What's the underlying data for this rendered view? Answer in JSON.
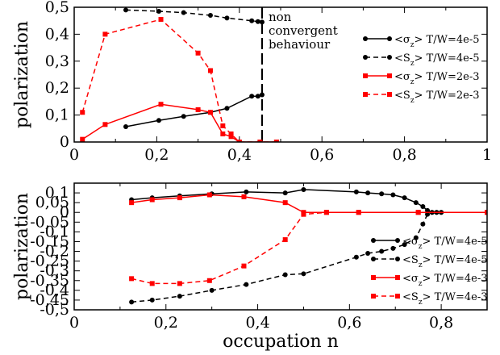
{
  "chart_data": [
    {
      "type": "line",
      "ylabel": "polarization",
      "xlabel": "",
      "xlim": [
        0,
        1
      ],
      "ylim": [
        0,
        0.5
      ],
      "xticks": [
        0,
        0.2,
        0.4,
        0.6,
        0.8,
        1
      ],
      "xtick_labels": [
        "0",
        "0,2",
        "0,4",
        "0,6",
        "0,8",
        "1"
      ],
      "yticks": [
        0,
        0.1,
        0.2,
        0.3,
        0.4,
        0.5
      ],
      "ytick_labels": [
        "0",
        "0,1",
        "0,2",
        "0,3",
        "0,4",
        "0,5"
      ],
      "legend_position": "right",
      "annotation": {
        "text": [
          "non",
          "convergent",
          "behaviour"
        ],
        "vline_x": 0.455
      },
      "series": [
        {
          "name": "<σz> T/W=4e-5",
          "color": "#000000",
          "dashed": false,
          "marker": "circle",
          "x": [
            0.125,
            0.205,
            0.265,
            0.33,
            0.37,
            0.43,
            0.445,
            0.455
          ],
          "y": [
            0.057,
            0.08,
            0.095,
            0.11,
            0.125,
            0.17,
            0.17,
            0.175
          ]
        },
        {
          "name": "<Sz> T/W=4e-5",
          "color": "#000000",
          "dashed": true,
          "marker": "circle",
          "x": [
            0.125,
            0.205,
            0.265,
            0.33,
            0.37,
            0.43,
            0.445,
            0.455
          ],
          "y": [
            0.49,
            0.485,
            0.48,
            0.47,
            0.46,
            0.45,
            0.447,
            0.445
          ]
        },
        {
          "name": "<σz> T/W=2e-3",
          "color": "#ff0000",
          "dashed": false,
          "marker": "square",
          "x": [
            0.02,
            0.075,
            0.21,
            0.3,
            0.33,
            0.36,
            0.38,
            0.4,
            0.45,
            0.49
          ],
          "y": [
            0.01,
            0.065,
            0.14,
            0.12,
            0.11,
            0.03,
            0.02,
            0.0,
            0.0,
            0.0
          ]
        },
        {
          "name": "<Sz> T/W=2e-3",
          "color": "#ff0000",
          "dashed": true,
          "marker": "square",
          "x": [
            0.02,
            0.075,
            0.21,
            0.3,
            0.33,
            0.36,
            0.38,
            0.4,
            0.45,
            0.49
          ],
          "y": [
            0.11,
            0.4,
            0.455,
            0.33,
            0.265,
            0.06,
            0.03,
            0.0,
            0.0,
            0.0
          ]
        }
      ]
    },
    {
      "type": "line",
      "ylabel": "polarization",
      "xlabel": "occupation n",
      "xlim": [
        0,
        0.9
      ],
      "ylim": [
        -0.5,
        0.15
      ],
      "xticks": [
        0,
        0.2,
        0.4,
        0.6,
        0.8
      ],
      "xtick_labels": [
        "0",
        "0,2",
        "0,4",
        "0,6",
        "0,8"
      ],
      "yticks": [
        0.1,
        0.05,
        0,
        -0.05,
        -0.1,
        -0.15,
        -0.2,
        -0.25,
        -0.3,
        -0.35,
        -0.4,
        -0.45,
        -0.5
      ],
      "ytick_labels": [
        "0,1",
        "0,05",
        "0",
        "-0,05",
        "-0,1",
        "-0,15",
        "-0,2",
        "-0,25",
        "-0,3",
        "-0,35",
        "-0,4",
        "-0,45",
        "-0,5"
      ],
      "legend_position": "lower-right",
      "series": [
        {
          "name": "<σz> T/W=4e-5",
          "color": "#000000",
          "dashed": false,
          "marker": "circle",
          "x": [
            0.125,
            0.17,
            0.23,
            0.3,
            0.375,
            0.46,
            0.5,
            0.615,
            0.64,
            0.67,
            0.695,
            0.72,
            0.745,
            0.76,
            0.77,
            0.78,
            0.79,
            0.8,
            0.9
          ],
          "y": [
            0.065,
            0.075,
            0.085,
            0.095,
            0.105,
            0.1,
            0.117,
            0.105,
            0.1,
            0.095,
            0.09,
            0.075,
            0.05,
            0.03,
            0.01,
            0.0,
            0.0,
            0.0,
            0.0
          ]
        },
        {
          "name": "<Sz> T/W=4e-5",
          "color": "#000000",
          "dashed": true,
          "marker": "circle",
          "x": [
            0.125,
            0.17,
            0.23,
            0.3,
            0.375,
            0.46,
            0.5,
            0.615,
            0.64,
            0.67,
            0.695,
            0.72,
            0.745,
            0.76,
            0.77,
            0.78,
            0.79,
            0.8,
            0.9
          ],
          "y": [
            -0.46,
            -0.45,
            -0.43,
            -0.4,
            -0.37,
            -0.32,
            -0.315,
            -0.23,
            -0.21,
            -0.2,
            -0.185,
            -0.165,
            -0.13,
            -0.06,
            -0.01,
            0.0,
            0.0,
            0.0,
            0.0
          ]
        },
        {
          "name": "<σz> T/W=4e-3",
          "color": "#ff0000",
          "dashed": false,
          "marker": "square",
          "x": [
            0.125,
            0.17,
            0.23,
            0.295,
            0.37,
            0.46,
            0.5,
            0.55,
            0.62,
            0.75,
            0.9
          ],
          "y": [
            0.05,
            0.065,
            0.075,
            0.09,
            0.08,
            0.05,
            0.0,
            0.0,
            0.0,
            0.0,
            0.0
          ]
        },
        {
          "name": "<Sz> T/W=4e-3",
          "color": "#ff0000",
          "dashed": true,
          "marker": "square",
          "x": [
            0.125,
            0.17,
            0.23,
            0.295,
            0.37,
            0.46,
            0.5,
            0.55,
            0.62,
            0.75,
            0.9
          ],
          "y": [
            -0.34,
            -0.365,
            -0.365,
            -0.35,
            -0.275,
            -0.14,
            -0.01,
            0.0,
            0.0,
            0.0,
            0.0
          ]
        }
      ]
    }
  ]
}
